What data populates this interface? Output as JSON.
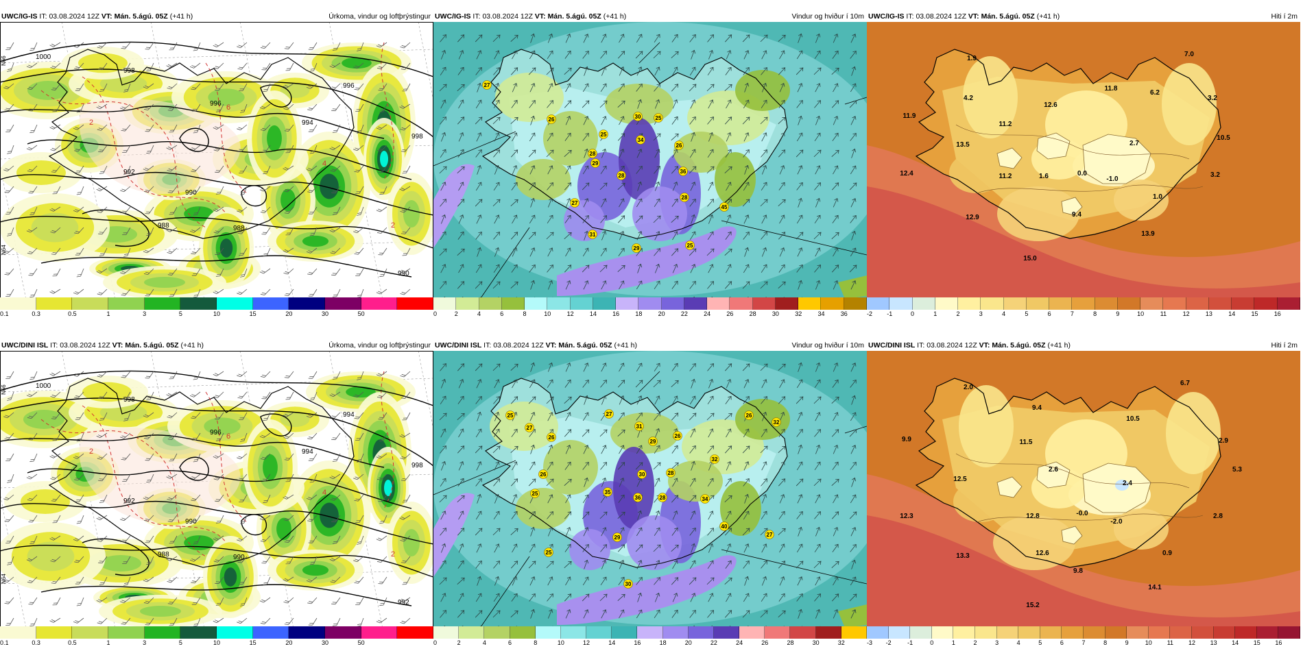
{
  "rows": [
    {
      "model": "UWC/IG-IS",
      "it_label": "IT:",
      "it_value": "03.08.2024 12Z",
      "vt_label": "VT:",
      "vt_value": "Mán. 5.ágú. 05Z",
      "lead": "(+41 h)"
    },
    {
      "model": "UWC/DINI ISL",
      "it_label": "IT:",
      "it_value": "03.08.2024 12Z",
      "vt_label": "VT:",
      "vt_value": "Mán. 5.ágú. 05Z",
      "lead": "(+41 h)"
    }
  ],
  "precip": {
    "title": "Úrkoma, vindur og loftþrýstingur",
    "colors": [
      "#fafad2",
      "#e6e632",
      "#c8dc5a",
      "#90d250",
      "#23b423",
      "#145a3c",
      "#00ffe6",
      "#3c64ff",
      "#000080",
      "#7d0064",
      "#ff1e8c",
      "#ff0000"
    ],
    "ticks": [
      "0.1",
      "0.3",
      "0.5",
      "1",
      "3",
      "5",
      "10",
      "15",
      "20",
      "30",
      "50",
      ""
    ],
    "isobars": [
      [
        {
          "label": "1000"
        },
        {
          "label": "998"
        },
        {
          "label": "996"
        },
        {
          "label": "994"
        },
        {
          "label": "992"
        },
        {
          "label": "990"
        },
        {
          "label": "988"
        },
        {
          "label": "988"
        },
        {
          "label": "990"
        },
        {
          "label": "996"
        },
        {
          "label": "998"
        }
      ],
      [
        {
          "label": "1000"
        },
        {
          "label": "998"
        },
        {
          "label": "996"
        },
        {
          "label": "994"
        },
        {
          "label": "992"
        },
        {
          "label": "990"
        },
        {
          "label": "988"
        },
        {
          "label": "990"
        },
        {
          "label": "992"
        },
        {
          "label": "994"
        },
        {
          "label": "998"
        }
      ]
    ],
    "lat_label": "N66",
    "lat_label2": "N64",
    "temp_labels": [
      "2",
      "4",
      "6",
      "2"
    ]
  },
  "wind": {
    "title": "Vindur og hviður í 10m",
    "colors": [
      "#f0fadc",
      "#d2eb96",
      "#b4d264",
      "#96c03c",
      "#b4fafa",
      "#8ce6e6",
      "#64d2d2",
      "#3cb4b4",
      "#c8b4fa",
      "#a08cf0",
      "#7864dc",
      "#5a3cb4",
      "#ffb4b4",
      "#f07878",
      "#d24646",
      "#a01e1e",
      "#ffc800",
      "#e6a000",
      "#b48200"
    ],
    "ticks": [
      [
        "0",
        "2",
        "4",
        "6",
        "8",
        "10",
        "12",
        "14",
        "16",
        "18",
        "20",
        "22",
        "24",
        "26",
        "28",
        "30",
        "32",
        "34",
        "36"
      ],
      [
        "0",
        "2",
        "4",
        "6",
        "8",
        "10",
        "12",
        "14",
        "16",
        "18",
        "20",
        "22",
        "24",
        "26",
        "28",
        "30",
        "32"
      ]
    ],
    "gusts": [
      [
        "27",
        "26",
        "30",
        "25",
        "26",
        "25",
        "29",
        "34",
        "28",
        "28",
        "36",
        "27",
        "28",
        "45",
        "31",
        "29",
        "25"
      ],
      [
        "25",
        "27",
        "26",
        "27",
        "26",
        "31",
        "29",
        "26",
        "32",
        "26",
        "30",
        "28",
        "35",
        "36",
        "28",
        "34",
        "32",
        "29",
        "27",
        "40",
        "25",
        "30",
        "25"
      ]
    ]
  },
  "temp": {
    "title": "Hiti í 2m",
    "colors": [
      "#a0c8ff",
      "#c8e6ff",
      "#dceedc",
      "#fffac8",
      "#fff0a0",
      "#fae68c",
      "#f5d278",
      "#f0c864",
      "#ebb450",
      "#e6a03c",
      "#dc8c32",
      "#d27828",
      "#e68c5a",
      "#e67850",
      "#dc6446",
      "#d2503c",
      "#c83c32",
      "#be2828",
      "#aa1e32",
      "#961432"
    ],
    "ticks": [
      [
        "-2",
        "-1",
        "0",
        "1",
        "2",
        "3",
        "4",
        "5",
        "6",
        "7",
        "8",
        "9",
        "10",
        "11",
        "12",
        "13",
        "14",
        "15",
        "16"
      ],
      [
        "-3",
        "-2",
        "-1",
        "0",
        "1",
        "2",
        "3",
        "4",
        "5",
        "6",
        "7",
        "8",
        "9",
        "10",
        "11",
        "12",
        "13",
        "14",
        "15",
        "16"
      ]
    ],
    "values": [
      [
        "1.9",
        "7.0",
        "4.2",
        "11.8",
        "6.2",
        "12.6",
        "3.2",
        "11.9",
        "11.2",
        "2.7",
        "10.5",
        "13.5",
        "12.4",
        "11.2",
        "1.6",
        "0.0",
        "-1.0",
        "3.2",
        "1.0",
        "12.9",
        "9.4",
        "13.9",
        "15.0"
      ],
      [
        "2.0",
        "6.7",
        "9.4",
        "10.5",
        "9.9",
        "11.5",
        "2.9",
        "2.6",
        "5.3",
        "12.5",
        "2.4",
        "12.3",
        "12.8",
        "-0.0",
        "-2.0",
        "2.8",
        "13.3",
        "12.6",
        "0.9",
        "9.8",
        "14.1",
        "15.2"
      ]
    ]
  }
}
